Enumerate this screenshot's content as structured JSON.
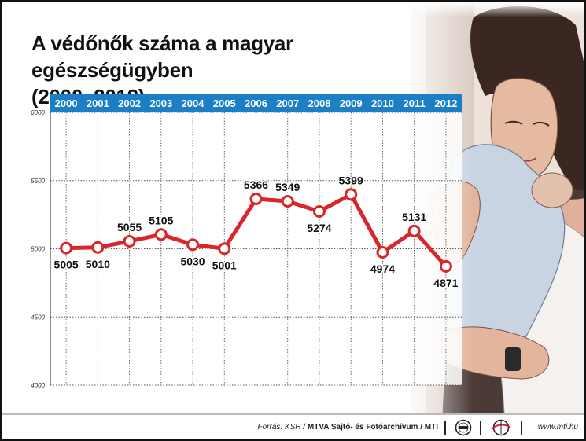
{
  "title": {
    "line1": "A védőnők száma a magyar egészségügyben",
    "line2": "(2000–2012)"
  },
  "chart_data": {
    "type": "line",
    "title": "A védőnők száma a magyar egészségügyben (2000–2012)",
    "xlabel": "",
    "ylabel": "",
    "x": [
      "2000",
      "2001",
      "2002",
      "2003",
      "2004",
      "2005",
      "2006",
      "2007",
      "2008",
      "2009",
      "2010",
      "2011",
      "2012"
    ],
    "values": [
      5005,
      5010,
      5055,
      5105,
      5030,
      5001,
      5366,
      5349,
      5274,
      5399,
      4974,
      5131,
      4871
    ],
    "data_labels": [
      "5005",
      "5010",
      "5055",
      "5105",
      "5030",
      "5001",
      "5366",
      "5349",
      "5274",
      "5399",
      "4974",
      "5131",
      "4871"
    ],
    "yticks": [
      "4000",
      "4500",
      "5000",
      "5500",
      "6000"
    ],
    "ylim": [
      4000,
      6000
    ],
    "x_axis_position": "top",
    "grid": true,
    "legend": "none",
    "colors": {
      "line": "#d9262b",
      "marker_fill": "#ffffff",
      "header_band": "#1a7fc4",
      "header_text": "#ffffff",
      "grid": "#555555"
    }
  },
  "footer": {
    "source_label": "Forrás: KSH /",
    "source_org": "MTVA Sajtó- és Fotóarchívum / MTI",
    "url": "www.mti.hu",
    "logos": [
      "mtva-logo-icon",
      "mti-logo-icon"
    ]
  },
  "background": {
    "photo": "mother-holding-baby-illustration"
  }
}
